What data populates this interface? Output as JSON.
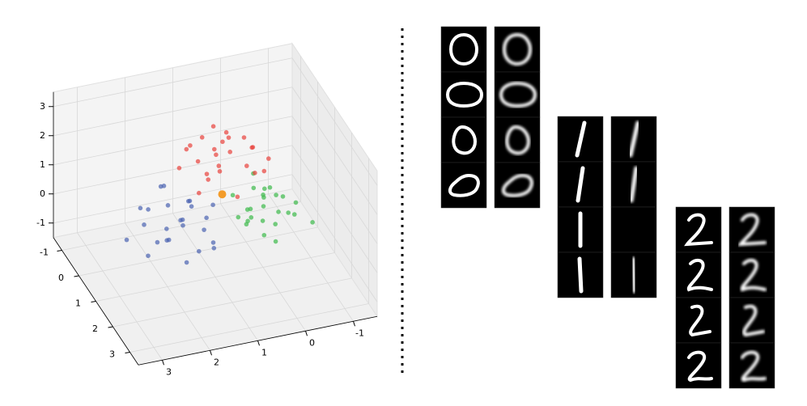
{
  "chart_data": {
    "type": "scatter3d",
    "xlim": [
      -1.5,
      3.5
    ],
    "ylim": [
      -1.5,
      3.5
    ],
    "zlim": [
      -1.5,
      3.5
    ],
    "xticks": [
      -1,
      0,
      1,
      2,
      3
    ],
    "yticks": [
      -1,
      0,
      1,
      2,
      3
    ],
    "zticks": [
      -1,
      0,
      1,
      2,
      3
    ],
    "grid": true,
    "series": [
      {
        "color": "#4a62b0",
        "x": [
          -0.5,
          0.4,
          0.9,
          -0.1,
          0.6,
          -0.8,
          0.2,
          0.7,
          -0.3,
          0.1,
          1.0,
          -0.6,
          0.3,
          -0.2,
          0.8,
          -0.4,
          0.0,
          0.5,
          -0.7,
          0.6,
          -0.9,
          0.2,
          0.4,
          -0.1,
          1.2
        ],
        "y": [
          1.0,
          1.8,
          1.2,
          2.1,
          0.9,
          1.5,
          1.4,
          2.3,
          1.1,
          1.7,
          1.6,
          2.0,
          0.8,
          1.3,
          1.9,
          1.0,
          2.5,
          1.5,
          1.8,
          1.2,
          1.4,
          0.9,
          2.0,
          1.6,
          1.1
        ],
        "z": [
          -0.2,
          -0.5,
          0.1,
          -0.3,
          -0.7,
          0.2,
          -0.1,
          -0.6,
          0.0,
          -0.4,
          -0.8,
          -0.2,
          0.3,
          -0.5,
          -0.1,
          -0.3,
          -0.6,
          0.0,
          -0.4,
          -0.9,
          0.1,
          -0.2,
          -0.5,
          0.2,
          -0.3
        ]
      },
      {
        "color": "#3cb94a",
        "x": [
          -0.4,
          0.3,
          0.8,
          -0.2,
          0.5,
          -0.7,
          0.1,
          0.6,
          -0.3,
          0.2,
          0.9,
          -0.5,
          0.4,
          -0.1,
          0.7,
          -0.6,
          0.0,
          0.3,
          -0.2,
          0.5,
          1.1,
          0.2,
          -0.4,
          0.1,
          0.6
        ],
        "y": [
          -0.3,
          0.0,
          -0.6,
          -0.1,
          -0.5,
          -0.4,
          0.2,
          -0.8,
          -0.2,
          -0.7,
          -0.3,
          0.1,
          -0.9,
          -0.4,
          -0.1,
          -0.6,
          -0.5,
          0.1,
          -0.7,
          -0.2,
          -1.0,
          -0.3,
          -0.5,
          0.0,
          -0.4
        ],
        "z": [
          -0.1,
          -0.4,
          0.0,
          -0.6,
          -0.2,
          0.1,
          -0.5,
          -0.3,
          -0.7,
          0.0,
          -0.8,
          -0.3,
          -0.1,
          -0.5,
          -0.2,
          -0.4,
          0.2,
          -0.6,
          -0.3,
          -0.9,
          -0.2,
          0.1,
          -0.4,
          -0.7,
          -0.5
        ]
      },
      {
        "color": "#e8413c",
        "x": [
          -0.6,
          0.3,
          0.8,
          -0.2,
          0.5,
          -0.9,
          0.1,
          0.6,
          -0.4,
          0.2,
          0.9,
          -0.7,
          0.4,
          -0.1,
          0.7,
          -0.5,
          0.0,
          0.3,
          -0.3,
          0.6,
          -0.8,
          0.2,
          0.5,
          -0.2,
          0.1
        ],
        "y": [
          0.2,
          0.9,
          0.1,
          1.1,
          -0.2,
          0.6,
          0.4,
          1.2,
          -0.1,
          0.7,
          0.5,
          1.0,
          0.0,
          0.3,
          0.8,
          -0.3,
          1.4,
          0.6,
          0.9,
          0.2,
          0.4,
          -0.4,
          1.0,
          0.5,
          0.7
        ],
        "z": [
          1.8,
          1.2,
          1.6,
          2.0,
          1.3,
          1.5,
          2.3,
          1.1,
          1.7,
          1.9,
          1.0,
          1.4,
          2.1,
          1.6,
          1.8,
          1.2,
          1.5,
          2.4,
          1.3,
          1.7,
          1.9,
          1.4,
          1.6,
          1.1,
          2.0
        ]
      },
      {
        "color": "#f39c2a",
        "x": [
          0.0
        ],
        "y": [
          0.5
        ],
        "z": [
          0.3
        ]
      }
    ]
  }
}
